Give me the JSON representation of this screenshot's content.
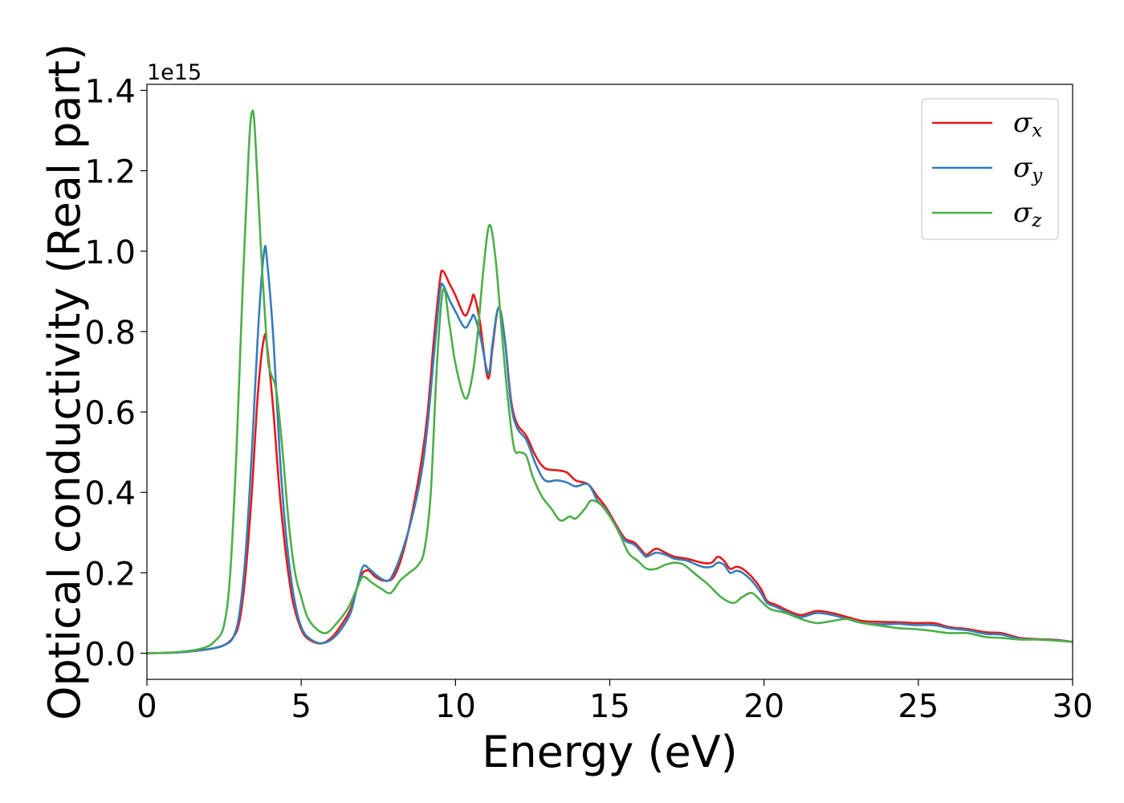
{
  "chart_data": {
    "type": "line",
    "xlabel": "Energy (eV)",
    "ylabel": "Optical conductivity (Real part)",
    "y_offset_label": "1e15",
    "xlim": [
      0,
      30
    ],
    "ylim": [
      -0.065,
      1.415
    ],
    "x_ticks": [
      0,
      5,
      10,
      15,
      20,
      25,
      30
    ],
    "x_tick_labels": [
      "0",
      "5",
      "10",
      "15",
      "20",
      "25",
      "30"
    ],
    "y_ticks": [
      0.0,
      0.2,
      0.4,
      0.6,
      0.8,
      1.0,
      1.2,
      1.4
    ],
    "y_tick_labels": [
      "0.0",
      "0.2",
      "0.4",
      "0.6",
      "0.8",
      "1.0",
      "1.2",
      "1.4"
    ],
    "grid": false,
    "legend_position": "top-right",
    "series": [
      {
        "name": "σ",
        "subscript": "x",
        "color": "#e41a1c",
        "points": [
          [
            0,
            0
          ],
          [
            1,
            0.002
          ],
          [
            2,
            0.01
          ],
          [
            2.5,
            0.02
          ],
          [
            2.8,
            0.04
          ],
          [
            3.0,
            0.08
          ],
          [
            3.2,
            0.2
          ],
          [
            3.4,
            0.4
          ],
          [
            3.6,
            0.65
          ],
          [
            3.8,
            0.785
          ],
          [
            3.9,
            0.76
          ],
          [
            4.1,
            0.6
          ],
          [
            4.3,
            0.4
          ],
          [
            4.5,
            0.25
          ],
          [
            4.7,
            0.14
          ],
          [
            4.9,
            0.08
          ],
          [
            5.1,
            0.045
          ],
          [
            5.4,
            0.028
          ],
          [
            5.7,
            0.025
          ],
          [
            6.0,
            0.04
          ],
          [
            6.3,
            0.07
          ],
          [
            6.6,
            0.11
          ],
          [
            6.8,
            0.16
          ],
          [
            7.0,
            0.2
          ],
          [
            7.2,
            0.205
          ],
          [
            7.4,
            0.19
          ],
          [
            7.7,
            0.18
          ],
          [
            8.0,
            0.19
          ],
          [
            8.3,
            0.25
          ],
          [
            8.6,
            0.35
          ],
          [
            8.9,
            0.48
          ],
          [
            9.1,
            0.6
          ],
          [
            9.3,
            0.78
          ],
          [
            9.5,
            0.93
          ],
          [
            9.6,
            0.95
          ],
          [
            9.8,
            0.92
          ],
          [
            10.0,
            0.89
          ],
          [
            10.3,
            0.84
          ],
          [
            10.5,
            0.87
          ],
          [
            10.6,
            0.89
          ],
          [
            10.8,
            0.82
          ],
          [
            11.0,
            0.7
          ],
          [
            11.1,
            0.69
          ],
          [
            11.2,
            0.76
          ],
          [
            11.4,
            0.86
          ],
          [
            11.6,
            0.78
          ],
          [
            11.8,
            0.63
          ],
          [
            12.0,
            0.57
          ],
          [
            12.3,
            0.54
          ],
          [
            12.6,
            0.49
          ],
          [
            12.9,
            0.46
          ],
          [
            13.3,
            0.455
          ],
          [
            13.6,
            0.45
          ],
          [
            13.9,
            0.43
          ],
          [
            14.3,
            0.42
          ],
          [
            14.6,
            0.39
          ],
          [
            14.9,
            0.36
          ],
          [
            15.2,
            0.32
          ],
          [
            15.5,
            0.285
          ],
          [
            15.8,
            0.275
          ],
          [
            16.1,
            0.25
          ],
          [
            16.2,
            0.245
          ],
          [
            16.5,
            0.26
          ],
          [
            16.8,
            0.25
          ],
          [
            17.1,
            0.24
          ],
          [
            17.5,
            0.235
          ],
          [
            18.0,
            0.225
          ],
          [
            18.3,
            0.225
          ],
          [
            18.5,
            0.24
          ],
          [
            18.7,
            0.23
          ],
          [
            18.9,
            0.21
          ],
          [
            19.1,
            0.215
          ],
          [
            19.3,
            0.21
          ],
          [
            19.6,
            0.19
          ],
          [
            19.9,
            0.16
          ],
          [
            20.1,
            0.13
          ],
          [
            20.4,
            0.12
          ],
          [
            20.8,
            0.105
          ],
          [
            21.2,
            0.095
          ],
          [
            21.7,
            0.105
          ],
          [
            22.2,
            0.1
          ],
          [
            22.7,
            0.09
          ],
          [
            23.2,
            0.08
          ],
          [
            23.8,
            0.078
          ],
          [
            24.4,
            0.077
          ],
          [
            24.9,
            0.075
          ],
          [
            25.5,
            0.075
          ],
          [
            26.0,
            0.065
          ],
          [
            26.6,
            0.06
          ],
          [
            27.2,
            0.052
          ],
          [
            27.7,
            0.05
          ],
          [
            28.3,
            0.038
          ],
          [
            28.9,
            0.035
          ],
          [
            29.5,
            0.033
          ],
          [
            30,
            0.028
          ]
        ]
      },
      {
        "name": "σ",
        "subscript": "y",
        "color": "#377eb8",
        "points": [
          [
            0,
            0
          ],
          [
            1,
            0.002
          ],
          [
            2,
            0.01
          ],
          [
            2.5,
            0.02
          ],
          [
            2.8,
            0.04
          ],
          [
            3.0,
            0.1
          ],
          [
            3.2,
            0.25
          ],
          [
            3.4,
            0.5
          ],
          [
            3.6,
            0.8
          ],
          [
            3.8,
            1.0
          ],
          [
            3.9,
            0.97
          ],
          [
            4.1,
            0.78
          ],
          [
            4.3,
            0.5
          ],
          [
            4.5,
            0.3
          ],
          [
            4.7,
            0.17
          ],
          [
            4.9,
            0.09
          ],
          [
            5.1,
            0.05
          ],
          [
            5.4,
            0.03
          ],
          [
            5.7,
            0.025
          ],
          [
            6.0,
            0.035
          ],
          [
            6.3,
            0.06
          ],
          [
            6.6,
            0.1
          ],
          [
            6.8,
            0.16
          ],
          [
            7.0,
            0.215
          ],
          [
            7.2,
            0.21
          ],
          [
            7.5,
            0.19
          ],
          [
            7.8,
            0.18
          ],
          [
            8.0,
            0.2
          ],
          [
            8.3,
            0.26
          ],
          [
            8.6,
            0.34
          ],
          [
            8.9,
            0.45
          ],
          [
            9.1,
            0.57
          ],
          [
            9.3,
            0.74
          ],
          [
            9.5,
            0.9
          ],
          [
            9.6,
            0.915
          ],
          [
            9.8,
            0.88
          ],
          [
            10.0,
            0.85
          ],
          [
            10.3,
            0.81
          ],
          [
            10.5,
            0.83
          ],
          [
            10.6,
            0.84
          ],
          [
            10.8,
            0.79
          ],
          [
            11.0,
            0.71
          ],
          [
            11.1,
            0.7
          ],
          [
            11.2,
            0.77
          ],
          [
            11.4,
            0.86
          ],
          [
            11.6,
            0.78
          ],
          [
            11.8,
            0.62
          ],
          [
            12.0,
            0.56
          ],
          [
            12.3,
            0.53
          ],
          [
            12.6,
            0.47
          ],
          [
            12.9,
            0.43
          ],
          [
            13.3,
            0.43
          ],
          [
            13.6,
            0.425
          ],
          [
            13.9,
            0.415
          ],
          [
            14.3,
            0.42
          ],
          [
            14.6,
            0.38
          ],
          [
            14.9,
            0.355
          ],
          [
            15.2,
            0.315
          ],
          [
            15.5,
            0.28
          ],
          [
            15.8,
            0.27
          ],
          [
            16.1,
            0.245
          ],
          [
            16.2,
            0.24
          ],
          [
            16.5,
            0.25
          ],
          [
            16.8,
            0.245
          ],
          [
            17.1,
            0.235
          ],
          [
            17.5,
            0.23
          ],
          [
            18.0,
            0.215
          ],
          [
            18.3,
            0.215
          ],
          [
            18.5,
            0.225
          ],
          [
            18.7,
            0.22
          ],
          [
            18.9,
            0.2
          ],
          [
            19.1,
            0.205
          ],
          [
            19.3,
            0.2
          ],
          [
            19.6,
            0.18
          ],
          [
            19.9,
            0.15
          ],
          [
            20.1,
            0.125
          ],
          [
            20.4,
            0.115
          ],
          [
            20.8,
            0.1
          ],
          [
            21.2,
            0.09
          ],
          [
            21.7,
            0.1
          ],
          [
            22.2,
            0.095
          ],
          [
            22.7,
            0.085
          ],
          [
            23.2,
            0.075
          ],
          [
            23.8,
            0.072
          ],
          [
            24.4,
            0.073
          ],
          [
            24.9,
            0.07
          ],
          [
            25.5,
            0.07
          ],
          [
            26.0,
            0.062
          ],
          [
            26.6,
            0.057
          ],
          [
            27.2,
            0.048
          ],
          [
            27.7,
            0.046
          ],
          [
            28.3,
            0.036
          ],
          [
            28.9,
            0.034
          ],
          [
            29.5,
            0.032
          ],
          [
            30,
            0.028
          ]
        ]
      },
      {
        "name": "σ",
        "subscript": "z",
        "color": "#4daf4a",
        "points": [
          [
            0,
            0
          ],
          [
            1,
            0.003
          ],
          [
            1.8,
            0.012
          ],
          [
            2.2,
            0.03
          ],
          [
            2.5,
            0.07
          ],
          [
            2.7,
            0.2
          ],
          [
            2.9,
            0.5
          ],
          [
            3.1,
            0.9
          ],
          [
            3.3,
            1.25
          ],
          [
            3.4,
            1.345
          ],
          [
            3.5,
            1.3
          ],
          [
            3.7,
            1.0
          ],
          [
            3.9,
            0.75
          ],
          [
            4.0,
            0.7
          ],
          [
            4.2,
            0.65
          ],
          [
            4.4,
            0.5
          ],
          [
            4.6,
            0.32
          ],
          [
            4.8,
            0.2
          ],
          [
            5.0,
            0.14
          ],
          [
            5.2,
            0.09
          ],
          [
            5.5,
            0.06
          ],
          [
            5.8,
            0.05
          ],
          [
            6.1,
            0.07
          ],
          [
            6.5,
            0.11
          ],
          [
            6.8,
            0.16
          ],
          [
            7.0,
            0.19
          ],
          [
            7.3,
            0.175
          ],
          [
            7.6,
            0.16
          ],
          [
            7.9,
            0.15
          ],
          [
            8.2,
            0.18
          ],
          [
            8.5,
            0.2
          ],
          [
            8.8,
            0.22
          ],
          [
            9.0,
            0.26
          ],
          [
            9.2,
            0.4
          ],
          [
            9.4,
            0.72
          ],
          [
            9.6,
            0.905
          ],
          [
            9.8,
            0.82
          ],
          [
            10.0,
            0.72
          ],
          [
            10.3,
            0.635
          ],
          [
            10.5,
            0.67
          ],
          [
            10.7,
            0.78
          ],
          [
            10.9,
            0.95
          ],
          [
            11.1,
            1.065
          ],
          [
            11.3,
            0.98
          ],
          [
            11.5,
            0.8
          ],
          [
            11.7,
            0.63
          ],
          [
            11.9,
            0.51
          ],
          [
            12.1,
            0.5
          ],
          [
            12.3,
            0.49
          ],
          [
            12.5,
            0.44
          ],
          [
            12.8,
            0.39
          ],
          [
            13.1,
            0.36
          ],
          [
            13.4,
            0.33
          ],
          [
            13.7,
            0.34
          ],
          [
            13.9,
            0.335
          ],
          [
            14.2,
            0.36
          ],
          [
            14.4,
            0.38
          ],
          [
            14.7,
            0.37
          ],
          [
            15.0,
            0.34
          ],
          [
            15.3,
            0.3
          ],
          [
            15.6,
            0.25
          ],
          [
            15.9,
            0.23
          ],
          [
            16.2,
            0.21
          ],
          [
            16.5,
            0.21
          ],
          [
            16.8,
            0.22
          ],
          [
            17.1,
            0.225
          ],
          [
            17.4,
            0.22
          ],
          [
            17.8,
            0.195
          ],
          [
            18.2,
            0.17
          ],
          [
            18.6,
            0.14
          ],
          [
            19.0,
            0.125
          ],
          [
            19.3,
            0.14
          ],
          [
            19.6,
            0.15
          ],
          [
            19.9,
            0.13
          ],
          [
            20.2,
            0.11
          ],
          [
            20.7,
            0.1
          ],
          [
            21.2,
            0.085
          ],
          [
            21.7,
            0.075
          ],
          [
            22.2,
            0.08
          ],
          [
            22.7,
            0.085
          ],
          [
            23.2,
            0.075
          ],
          [
            23.8,
            0.068
          ],
          [
            24.4,
            0.062
          ],
          [
            24.9,
            0.06
          ],
          [
            25.5,
            0.055
          ],
          [
            26.0,
            0.05
          ],
          [
            26.6,
            0.05
          ],
          [
            27.2,
            0.04
          ],
          [
            27.7,
            0.038
          ],
          [
            28.3,
            0.034
          ],
          [
            28.9,
            0.034
          ],
          [
            29.5,
            0.031
          ],
          [
            30,
            0.028
          ]
        ]
      }
    ]
  }
}
